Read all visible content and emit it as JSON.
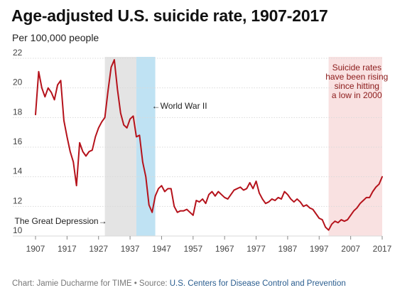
{
  "chart_data": {
    "type": "line",
    "title": "Age-adjusted U.S. suicide rate, 1907-2017",
    "subtitle": "Per 100,000 people",
    "xlim": [
      1907,
      2017
    ],
    "ylim": [
      10,
      22
    ],
    "x_ticks": [
      1907,
      1917,
      1927,
      1937,
      1947,
      1957,
      1967,
      1977,
      1987,
      1997,
      2007,
      2017
    ],
    "y_ticks": [
      10,
      12,
      14,
      16,
      18,
      20,
      22
    ],
    "grid": "horizontal",
    "series": [
      {
        "color": "#b5121b",
        "x": [
          1907,
          1908,
          1909,
          1910,
          1911,
          1912,
          1913,
          1914,
          1915,
          1916,
          1917,
          1918,
          1919,
          1920,
          1921,
          1922,
          1923,
          1924,
          1925,
          1926,
          1927,
          1928,
          1929,
          1930,
          1931,
          1932,
          1933,
          1934,
          1935,
          1936,
          1937,
          1938,
          1939,
          1940,
          1941,
          1942,
          1943,
          1944,
          1945,
          1946,
          1947,
          1948,
          1949,
          1950,
          1951,
          1952,
          1953,
          1954,
          1955,
          1956,
          1957,
          1958,
          1959,
          1960,
          1961,
          1962,
          1963,
          1964,
          1965,
          1966,
          1967,
          1968,
          1969,
          1970,
          1971,
          1972,
          1973,
          1974,
          1975,
          1976,
          1977,
          1978,
          1979,
          1980,
          1981,
          1982,
          1983,
          1984,
          1985,
          1986,
          1987,
          1988,
          1989,
          1990,
          1991,
          1992,
          1993,
          1994,
          1995,
          1996,
          1997,
          1998,
          1999,
          2000,
          2001,
          2002,
          2003,
          2004,
          2005,
          2006,
          2007,
          2008,
          2009,
          2010,
          2011,
          2012,
          2013,
          2014,
          2015,
          2016,
          2017
        ],
        "values": [
          18.2,
          21.1,
          20.0,
          19.4,
          20.0,
          19.7,
          19.2,
          20.2,
          20.5,
          17.8,
          16.7,
          15.7,
          15.0,
          13.4,
          16.3,
          15.7,
          15.4,
          15.7,
          15.8,
          16.7,
          17.3,
          17.7,
          18.0,
          19.8,
          21.4,
          21.9,
          19.9,
          18.3,
          17.5,
          17.3,
          17.9,
          18.1,
          16.7,
          16.8,
          15.0,
          14.0,
          12.1,
          11.6,
          12.7,
          13.2,
          13.4,
          13.0,
          13.2,
          13.2,
          12.0,
          11.6,
          11.7,
          11.7,
          11.8,
          11.6,
          11.4,
          12.4,
          12.3,
          12.5,
          12.2,
          12.8,
          13.0,
          12.7,
          13.0,
          12.8,
          12.6,
          12.5,
          12.8,
          13.1,
          13.2,
          13.3,
          13.1,
          13.2,
          13.6,
          13.2,
          13.7,
          12.9,
          12.5,
          12.2,
          12.3,
          12.5,
          12.4,
          12.6,
          12.5,
          13.0,
          12.8,
          12.5,
          12.3,
          12.5,
          12.3,
          12.0,
          12.1,
          11.9,
          11.8,
          11.5,
          11.2,
          11.1,
          10.6,
          10.4,
          10.8,
          11.0,
          10.9,
          11.1,
          11.0,
          11.1,
          11.4,
          11.7,
          11.9,
          12.2,
          12.4,
          12.6,
          12.6,
          13.0,
          13.3,
          13.5,
          14.0
        ]
      }
    ],
    "shaded_periods": [
      {
        "id": "great-depression",
        "start": 1929,
        "end": 1939,
        "color": "#e4e4e4",
        "label": "The Great Depression→"
      },
      {
        "id": "world-war-2",
        "start": 1939,
        "end": 1945,
        "color": "#bfe2f3",
        "label": "←World War II"
      },
      {
        "id": "recent-rise",
        "start": 2000,
        "end": 2017,
        "color": "#f9e1e1"
      }
    ],
    "annotation_lines": [
      "Suicide rates",
      "have been rising",
      "since hitting",
      "a low in 2000"
    ]
  },
  "footer": {
    "credit": "Chart: Jamie Ducharme for TIME • Source: ",
    "source": "U.S. Centers for Disease Control and Prevention"
  }
}
